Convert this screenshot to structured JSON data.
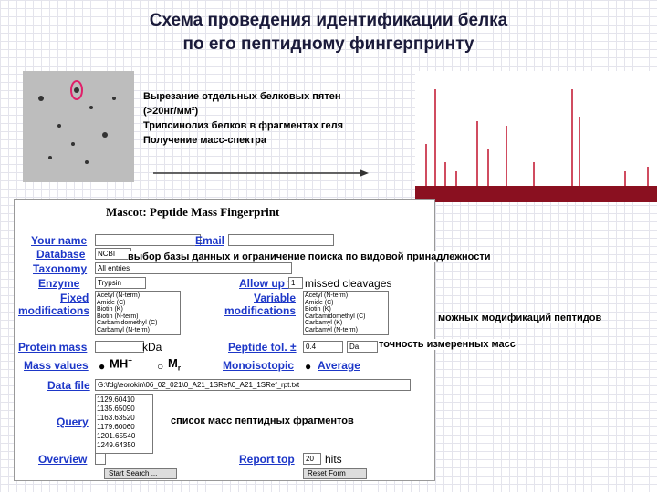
{
  "slide": {
    "title_lines": [
      "Схема проведения идентификации белка",
      "по его пептидному фингерпринту"
    ],
    "steps": [
      "Вырезание отдельных белковых пятен",
      "(>20нг/мм²)",
      "Трипсинолиз белков в фрагментах геля",
      "Получение масс-спектра"
    ],
    "annotations": {
      "database": "выбор базы данных и ограничение поиска по видовой принадлежности",
      "modifications": "можных модификаций пептидов",
      "tolerance": "точность измеренных масс",
      "masses": "список масс пептидных фрагментов"
    }
  },
  "form": {
    "title": "Mascot: Peptide Mass Fingerprint",
    "labels": {
      "your_name": "Your name",
      "email": "Email",
      "database": "Database",
      "taxonomy": "Taxonomy",
      "enzyme": "Enzyme",
      "allow_up_to": "Allow up to",
      "missed_cleavages": "missed cleavages",
      "fixed": "Fixed",
      "fixed2": "modifications",
      "variable": "Variable",
      "variable2": "modifications",
      "protein_mass": "Protein mass",
      "kda": "kDa",
      "peptide_tol": "Peptide tol. ±",
      "mass_values": "Mass values",
      "mh": "MH",
      "mh_sup": "+",
      "mr": "M",
      "mr_sub": "r",
      "monoisotopic": "Monoisotopic",
      "average": "Average",
      "data_file": "Data file",
      "query": "Query",
      "overview": "Overview",
      "report_top": "Report top",
      "hits": "hits"
    },
    "fields": {
      "database": "NCBI",
      "taxonomy": "All entries",
      "enzyme": "Trypsin",
      "missed": "1",
      "tol": "0.4",
      "tol_unit": "Da",
      "data_file": "G:\\fdg\\eorokin\\06_02_021\\0_A21_1SRef\\0_A21_1SRef_rpt.txt",
      "report_top": "20"
    },
    "fixed_mods": [
      "Acetyl (N-term)",
      "Amide (C)",
      "Biotin (K)",
      "Biotin (N-term)",
      "Carbamidomethyl (C)",
      "Carbamyl (N-term)"
    ],
    "variable_mods": [
      "Acetyl (N-term)",
      "Amide (C)",
      "Biotin (K)",
      "Carbamidomethyl (C)",
      "Carbamyl (K)",
      "Carbamyl (N-term)"
    ],
    "masses": [
      "1129.60410",
      "1135.65090",
      "1163.63520",
      "1179.60060",
      "1201.65540",
      "1249.64350"
    ],
    "buttons": [
      "Start Search ...",
      "Reset Form"
    ]
  }
}
